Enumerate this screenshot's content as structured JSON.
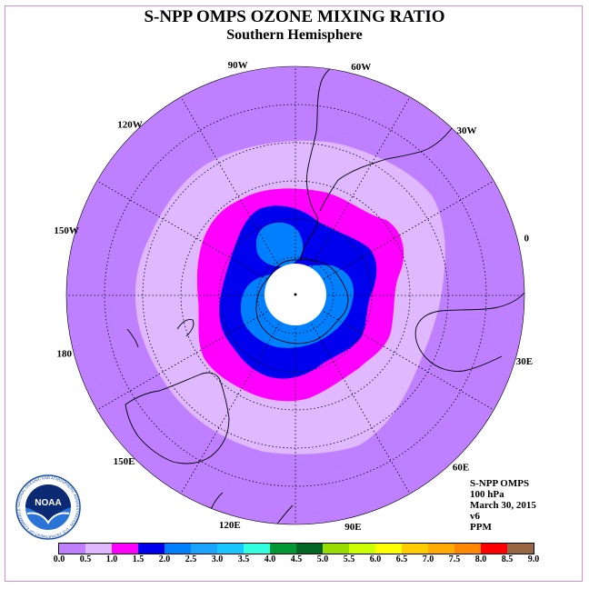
{
  "title": "S-NPP OMPS OZONE MIXING RATIO",
  "subtitle": "Southern Hemisphere",
  "longitude_labels": [
    {
      "text": "90W",
      "deg": 90
    },
    {
      "text": "60W",
      "deg": 60
    },
    {
      "text": "30W",
      "deg": 30
    },
    {
      "text": "0",
      "deg": 0
    },
    {
      "text": "30E",
      "deg": -30
    },
    {
      "text": "60E",
      "deg": -60
    },
    {
      "text": "90E",
      "deg": -90
    },
    {
      "text": "120E",
      "deg": -120
    },
    {
      "text": "150E",
      "deg": -150
    },
    {
      "text": "180",
      "deg": 180
    },
    {
      "text": "150W",
      "deg": 150
    },
    {
      "text": "120W",
      "deg": 120
    }
  ],
  "info": {
    "line1": "S-NPP OMPS",
    "line2": "100 hPa",
    "line3": "March 30, 2015",
    "line4": "v6",
    "line5": "PPM"
  },
  "logo": {
    "text": "NOAA",
    "ring_text": "NATIONAL OCEANIC AND ATMOSPHERIC ADMINISTRATION · U.S. DEPARTMENT OF COMMERCE"
  },
  "colorbar": {
    "ticks": [
      "0.0",
      "0.5",
      "1.0",
      "1.5",
      "2.0",
      "2.5",
      "3.0",
      "3.5",
      "4.0",
      "4.5",
      "5.0",
      "5.5",
      "6.0",
      "6.5",
      "7.0",
      "7.5",
      "8.0",
      "8.5",
      "9.0"
    ],
    "colors": [
      "#bf80ff",
      "#e0b8ff",
      "#ff00ff",
      "#0000ee",
      "#0080ff",
      "#1aa3ff",
      "#1ac6ff",
      "#33ffe0",
      "#009933",
      "#006622",
      "#99dd00",
      "#ccff00",
      "#ffff00",
      "#ffcc00",
      "#ffaa00",
      "#ff8800",
      "#ff0000",
      "#996644"
    ]
  },
  "map_colors": {
    "ocean": "#bf80ff",
    "band_0_5": "#e0b8ff",
    "band_1_0": "#ff00ff",
    "band_1_5": "#0000ee",
    "band_2_0": "#0080ff",
    "no_data": "#ffffff"
  }
}
